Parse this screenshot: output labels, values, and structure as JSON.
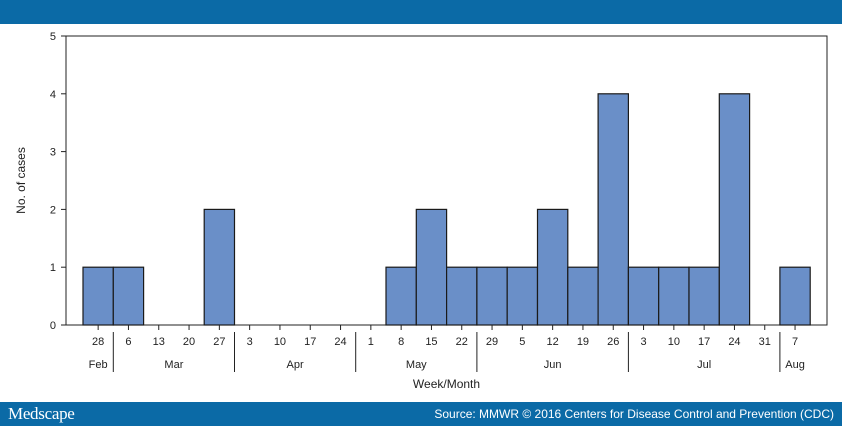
{
  "header": {
    "brand_color": "#0b6aa6"
  },
  "footer": {
    "logo": "Medscape",
    "source": "Source: MMWR © 2016 Centers for Disease Control and Prevention (CDC)"
  },
  "chart_data": {
    "type": "bar",
    "categories": [
      "28",
      "6",
      "13",
      "20",
      "27",
      "3",
      "10",
      "17",
      "24",
      "1",
      "8",
      "15",
      "22",
      "29",
      "5",
      "12",
      "19",
      "26",
      "3",
      "10",
      "17",
      "24",
      "31",
      "7"
    ],
    "values": [
      1,
      1,
      0,
      0,
      2,
      0,
      0,
      0,
      0,
      0,
      1,
      2,
      1,
      1,
      1,
      2,
      1,
      4,
      1,
      1,
      1,
      4,
      0,
      1
    ],
    "months": [
      {
        "label": "Feb",
        "start": 0,
        "end": 0
      },
      {
        "label": "Mar",
        "start": 1,
        "end": 4
      },
      {
        "label": "Apr",
        "start": 5,
        "end": 8
      },
      {
        "label": "May",
        "start": 9,
        "end": 12
      },
      {
        "label": "Jun",
        "start": 13,
        "end": 17
      },
      {
        "label": "Jul",
        "start": 18,
        "end": 22
      },
      {
        "label": "Aug",
        "start": 23,
        "end": 23
      }
    ],
    "xlabel": "Week/Month",
    "ylabel": "No. of cases",
    "ylim": [
      0,
      5
    ],
    "yticks": [
      0,
      1,
      2,
      3,
      4,
      5
    ],
    "grid": false,
    "bar_color": "#6a8fc8"
  }
}
